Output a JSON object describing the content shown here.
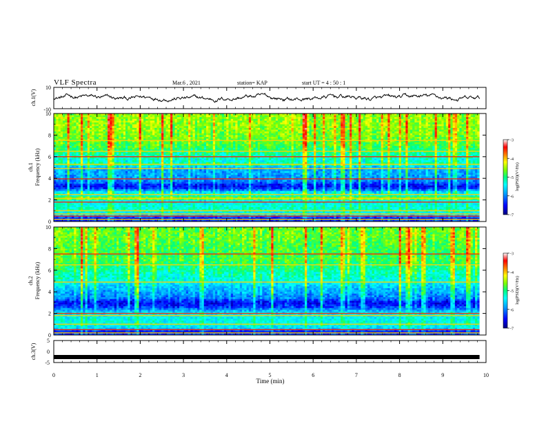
{
  "header": {
    "title": "VLF Spectra",
    "date": "Mar.6  , 2021",
    "station": "station= KAP",
    "start_ut": "start  UT =   4 : 50 : 1"
  },
  "chart_data": [
    {
      "type": "line",
      "id": "ch1-waveform",
      "ylabel": "ch.1(V)",
      "ylim": [
        -10,
        10
      ],
      "y_ticks": [
        "10",
        "-10"
      ],
      "x_range_min": [
        0,
        9.85
      ],
      "note_trace": "noisy waveform oscillating roughly between -3 and +4 V"
    },
    {
      "type": "heatmap",
      "id": "ch1-spectrogram",
      "title_label": "ch.1",
      "ylabel": "Frequency (kHz)",
      "ylim_khz": [
        0,
        10
      ],
      "y_ticks": [
        "0",
        "2",
        "4",
        "6",
        "8",
        "10"
      ],
      "x_range_min": [
        0,
        9.85
      ],
      "colorbar": {
        "label": "log(PSD)(V²/Hz)",
        "range": [
          -7,
          -3
        ],
        "ticks": [
          "-3",
          "-4",
          "-5",
          "-6",
          "-7"
        ],
        "colormap": [
          "#000080",
          "#0000ff",
          "#00a0ff",
          "#00ffff",
          "#00ff80",
          "#80ff00",
          "#ffff00",
          "#ff8000",
          "#ff0000",
          "#ffffff"
        ]
      },
      "profile_khz_level": [
        [
          0,
          0.2
        ],
        [
          0.3,
          0.1
        ],
        [
          0.6,
          0.35
        ],
        [
          1.0,
          0.45
        ],
        [
          1.5,
          0.42
        ],
        [
          2.0,
          0.38
        ],
        [
          2.15,
          0.75
        ],
        [
          2.3,
          0.45
        ],
        [
          2.8,
          0.35
        ],
        [
          3.0,
          0.18
        ],
        [
          3.3,
          0.12
        ],
        [
          3.6,
          0.22
        ],
        [
          4.0,
          0.28
        ],
        [
          4.6,
          0.3
        ],
        [
          5.0,
          0.3
        ],
        [
          5.3,
          0.5
        ],
        [
          5.6,
          0.42
        ],
        [
          6.0,
          0.45
        ],
        [
          6.5,
          0.5
        ],
        [
          7.0,
          0.55
        ],
        [
          8.0,
          0.6
        ],
        [
          9.0,
          0.62
        ],
        [
          10.0,
          0.62
        ]
      ],
      "lines_khz": [
        0.2,
        0.5,
        0.7,
        1.0,
        1.8,
        2.15,
        2.5,
        3.95,
        4.9,
        5.3,
        6.0,
        6.5,
        7.5
      ]
    },
    {
      "type": "heatmap",
      "id": "ch2-spectrogram",
      "title_label": "ch.2",
      "ylabel": "Frequency (kHz)",
      "ylim_khz": [
        0,
        10
      ],
      "y_ticks": [
        "0",
        "2",
        "4",
        "6",
        "8",
        "10"
      ],
      "x_range_min": [
        0,
        9.85
      ],
      "colorbar": {
        "label": "log(PSD)(V²/Hz)",
        "range": [
          -7,
          -3
        ],
        "ticks": [
          "-3",
          "-4",
          "-5",
          "-6",
          "-7"
        ],
        "colormap": [
          "#000080",
          "#0000ff",
          "#00a0ff",
          "#00ffff",
          "#00ff80",
          "#80ff00",
          "#ffff00",
          "#ff8000",
          "#ff0000",
          "#ffffff"
        ]
      },
      "profile_khz_level": [
        [
          0,
          0.2
        ],
        [
          0.3,
          0.1
        ],
        [
          0.6,
          0.35
        ],
        [
          1.0,
          0.42
        ],
        [
          1.5,
          0.4
        ],
        [
          2.0,
          0.38
        ],
        [
          2.2,
          0.32
        ],
        [
          2.6,
          0.18
        ],
        [
          3.0,
          0.12
        ],
        [
          3.4,
          0.25
        ],
        [
          4.0,
          0.3
        ],
        [
          4.5,
          0.35
        ],
        [
          5.0,
          0.42
        ],
        [
          5.5,
          0.45
        ],
        [
          6.0,
          0.48
        ],
        [
          7.0,
          0.55
        ],
        [
          8.0,
          0.55
        ],
        [
          9.0,
          0.58
        ],
        [
          10.0,
          0.58
        ]
      ],
      "lines_khz": [
        0.2,
        0.5,
        1.0,
        1.8,
        2.0,
        4.9,
        6.5,
        7.5
      ]
    },
    {
      "type": "line",
      "id": "ch3-waveform",
      "ylabel": "ch.3(V)",
      "ylim": [
        -5,
        5
      ],
      "y_ticks": [
        "5",
        "0",
        "-5"
      ],
      "x_range_min": [
        0,
        9.85
      ],
      "level_v": -2.5,
      "xlabel": "Time (min)",
      "x_ticks": [
        "0",
        "1",
        "2",
        "3",
        "4",
        "5",
        "6",
        "7",
        "8",
        "9",
        "10"
      ],
      "xlim": [
        0,
        10
      ]
    }
  ]
}
